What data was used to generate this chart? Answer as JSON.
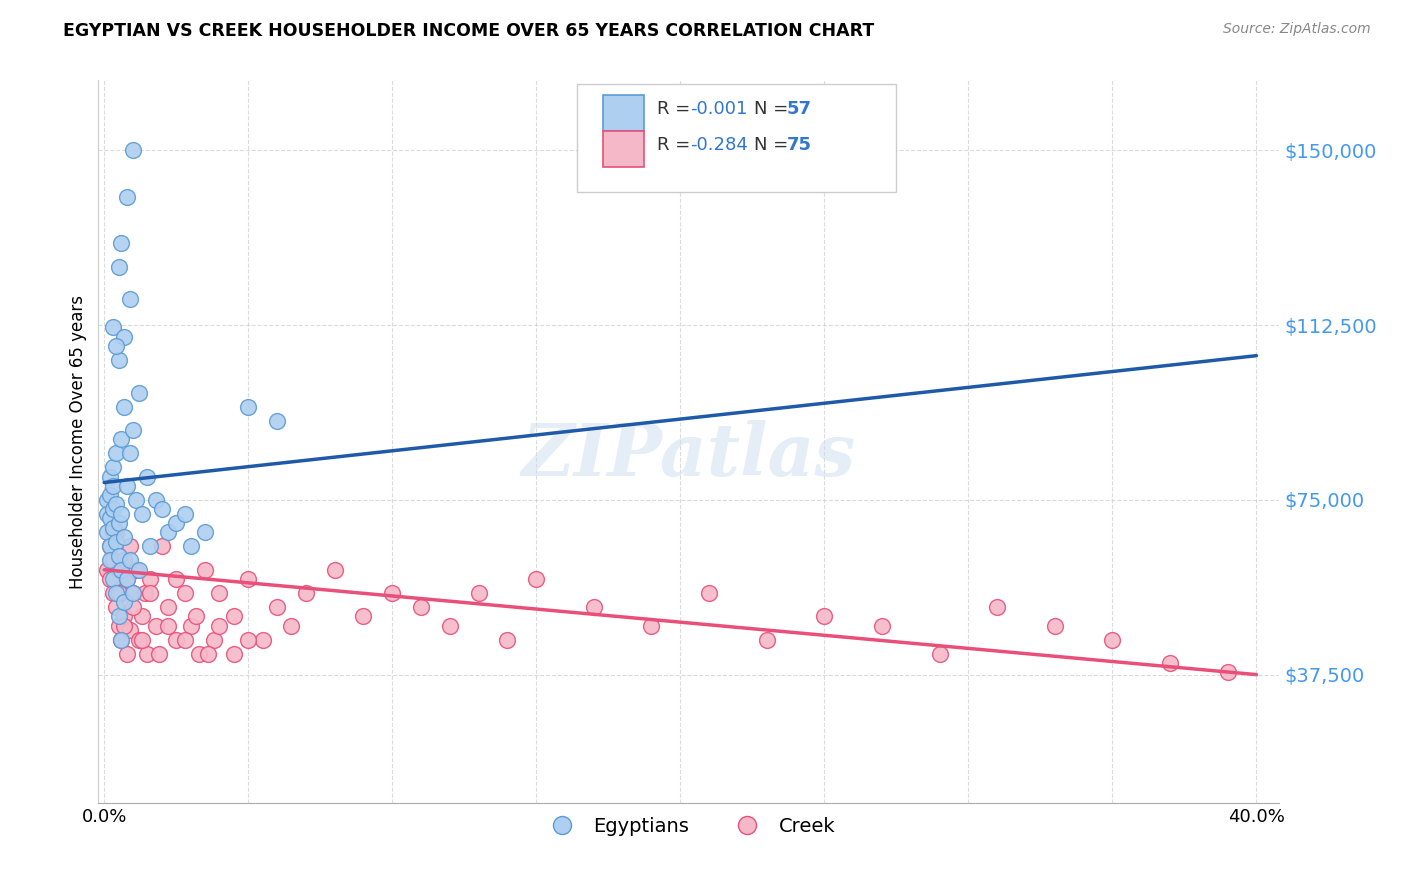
{
  "title": "EGYPTIAN VS CREEK HOUSEHOLDER INCOME OVER 65 YEARS CORRELATION CHART",
  "source": "Source: ZipAtlas.com",
  "ylabel": "Householder Income Over 65 years",
  "ytick_labels": [
    "$37,500",
    "$75,000",
    "$112,500",
    "$150,000"
  ],
  "ytick_values": [
    37500,
    75000,
    112500,
    150000
  ],
  "ymin": 10000,
  "ymax": 165000,
  "xmin": -0.002,
  "xmax": 0.408,
  "legend_blue_label_r": "R = -0.001",
  "legend_blue_label_n": "N = 57",
  "legend_pink_label_r": "R = -0.284",
  "legend_pink_label_n": "N = 75",
  "legend_bottom_blue": "Egyptians",
  "legend_bottom_pink": "Creek",
  "blue_fill": "#AECFF0",
  "pink_fill": "#F5B8C8",
  "blue_edge": "#5B9BD5",
  "pink_edge": "#E8507A",
  "blue_line": "#1F5AA8",
  "pink_line": "#E8507A",
  "watermark": "ZIPatlas",
  "egyptians_x": [
    0.001,
    0.001,
    0.001,
    0.002,
    0.002,
    0.002,
    0.002,
    0.002,
    0.003,
    0.003,
    0.003,
    0.003,
    0.003,
    0.004,
    0.004,
    0.004,
    0.004,
    0.005,
    0.005,
    0.005,
    0.006,
    0.006,
    0.006,
    0.006,
    0.007,
    0.007,
    0.007,
    0.008,
    0.008,
    0.009,
    0.009,
    0.01,
    0.01,
    0.011,
    0.012,
    0.012,
    0.013,
    0.015,
    0.016,
    0.018,
    0.02,
    0.022,
    0.025,
    0.028,
    0.03,
    0.035,
    0.005,
    0.006,
    0.008,
    0.01,
    0.05,
    0.06,
    0.005,
    0.003,
    0.007,
    0.009,
    0.004
  ],
  "egyptians_y": [
    75000,
    72000,
    68000,
    76000,
    71000,
    65000,
    80000,
    62000,
    73000,
    69000,
    78000,
    58000,
    82000,
    74000,
    55000,
    66000,
    85000,
    70000,
    63000,
    50000,
    88000,
    72000,
    60000,
    45000,
    95000,
    67000,
    53000,
    78000,
    58000,
    85000,
    62000,
    90000,
    55000,
    75000,
    98000,
    60000,
    72000,
    80000,
    65000,
    75000,
    73000,
    68000,
    70000,
    72000,
    65000,
    68000,
    125000,
    130000,
    140000,
    150000,
    95000,
    92000,
    105000,
    112000,
    110000,
    118000,
    108000
  ],
  "creek_x": [
    0.001,
    0.002,
    0.002,
    0.003,
    0.003,
    0.004,
    0.004,
    0.005,
    0.005,
    0.006,
    0.006,
    0.007,
    0.007,
    0.008,
    0.008,
    0.009,
    0.009,
    0.01,
    0.011,
    0.012,
    0.013,
    0.014,
    0.015,
    0.016,
    0.018,
    0.02,
    0.022,
    0.025,
    0.028,
    0.03,
    0.033,
    0.035,
    0.038,
    0.04,
    0.045,
    0.05,
    0.055,
    0.06,
    0.065,
    0.07,
    0.08,
    0.09,
    0.1,
    0.11,
    0.12,
    0.13,
    0.14,
    0.15,
    0.17,
    0.19,
    0.21,
    0.23,
    0.25,
    0.27,
    0.29,
    0.31,
    0.33,
    0.35,
    0.37,
    0.39,
    0.003,
    0.005,
    0.007,
    0.01,
    0.013,
    0.016,
    0.019,
    0.022,
    0.025,
    0.028,
    0.032,
    0.036,
    0.04,
    0.045,
    0.05
  ],
  "creek_y": [
    60000,
    58000,
    65000,
    55000,
    62000,
    52000,
    68000,
    48000,
    60000,
    55000,
    45000,
    62000,
    50000,
    58000,
    42000,
    65000,
    47000,
    55000,
    60000,
    45000,
    50000,
    55000,
    42000,
    58000,
    48000,
    65000,
    52000,
    45000,
    55000,
    48000,
    42000,
    60000,
    45000,
    55000,
    50000,
    58000,
    45000,
    52000,
    48000,
    55000,
    60000,
    50000,
    55000,
    52000,
    48000,
    55000,
    45000,
    58000,
    52000,
    48000,
    55000,
    45000,
    50000,
    48000,
    42000,
    52000,
    48000,
    45000,
    40000,
    38000,
    68000,
    55000,
    48000,
    52000,
    45000,
    55000,
    42000,
    48000,
    58000,
    45000,
    50000,
    42000,
    48000,
    42000,
    45000
  ]
}
